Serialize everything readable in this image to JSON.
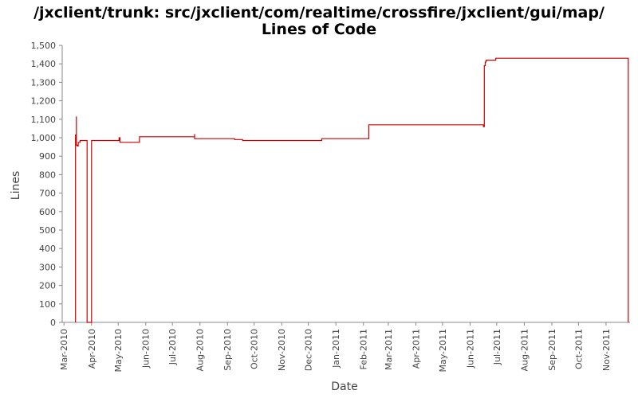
{
  "title": "/jxclient/trunk: src/jxclient/com/realtime/crossfire/jxclient/gui/map/",
  "subtitle": "Lines of Code",
  "colors": {
    "series": "#cc0000",
    "axis": "#888888",
    "text": "#444444"
  },
  "chart_data": {
    "type": "line",
    "title": "/jxclient/trunk: src/jxclient/com/realtime/crossfire/jxclient/gui/map/ Lines of Code",
    "xlabel": "Date",
    "ylabel": "Lines",
    "ylim": [
      0,
      1500
    ],
    "yticks": [
      0,
      100,
      200,
      300,
      400,
      500,
      600,
      700,
      800,
      900,
      1000,
      1100,
      1200,
      1300,
      1400,
      1500
    ],
    "ytick_labels": [
      "0",
      "100",
      "200",
      "300",
      "400",
      "500",
      "600",
      "700",
      "800",
      "900",
      "1,000",
      "1,100",
      "1,200",
      "1,300",
      "1,400",
      "1,500"
    ],
    "xlim": [
      "2010-02-27",
      "2011-11-28"
    ],
    "xticks": [
      "2010-03-01",
      "2010-04-01",
      "2010-05-01",
      "2010-06-01",
      "2010-07-01",
      "2010-08-01",
      "2010-09-01",
      "2010-10-01",
      "2010-11-01",
      "2010-12-01",
      "2011-01-01",
      "2011-02-01",
      "2011-03-01",
      "2011-04-01",
      "2011-05-01",
      "2011-06-01",
      "2011-07-01",
      "2011-08-01",
      "2011-09-01",
      "2011-10-01",
      "2011-11-01"
    ],
    "xtick_labels": [
      "Mar-2010",
      "Apr-2010",
      "May-2010",
      "Jun-2010",
      "Jul-2010",
      "Aug-2010",
      "Sep-2010",
      "Oct-2010",
      "Nov-2010",
      "Dec-2010",
      "Jan-2011",
      "Feb-2011",
      "Mar-2011",
      "Apr-2011",
      "May-2011",
      "Jun-2011",
      "Jul-2011",
      "Aug-2011",
      "Sep-2011",
      "Oct-2011",
      "Nov-2011"
    ],
    "grid": false,
    "series": [
      {
        "step": true,
        "x": [
          "2010-03-14",
          "2010-03-14",
          "2010-03-15",
          "2010-03-15",
          "2010-03-16",
          "2010-03-17",
          "2010-03-19",
          "2010-03-27",
          "2010-03-27",
          "2010-04-01",
          "2010-05-02",
          "2010-05-02",
          "2010-05-03",
          "2010-05-25",
          "2010-07-25",
          "2010-07-26",
          "2010-07-26",
          "2010-09-09",
          "2010-09-18",
          "2010-12-16",
          "2011-02-07",
          "2011-06-16",
          "2011-06-17",
          "2011-06-18",
          "2011-06-19",
          "2011-06-30",
          "2011-11-26",
          "2011-11-26"
        ],
        "values": [
          0,
          1015,
          1115,
          960,
          955,
          975,
          985,
          795,
          0,
          985,
          985,
          1000,
          975,
          1005,
          1005,
          1020,
          995,
          990,
          985,
          995,
          1070,
          1060,
          1390,
          1410,
          1420,
          1430,
          1430,
          0
        ]
      }
    ]
  }
}
